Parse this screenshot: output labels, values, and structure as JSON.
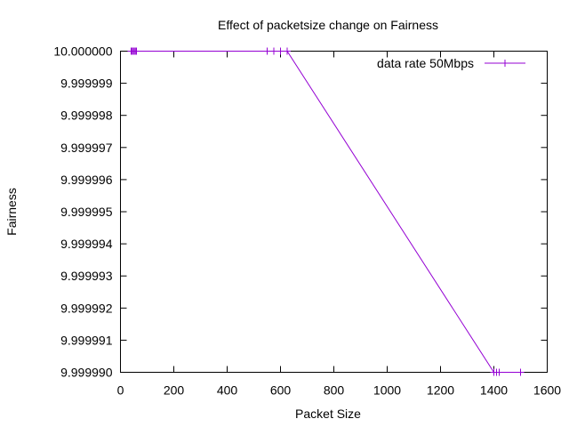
{
  "chart_data": {
    "type": "line",
    "title": "Effect of packetsize change on Fairness",
    "xlabel": "Packet Size",
    "ylabel": "Fairness",
    "xlim": [
      0,
      1600
    ],
    "ylim": [
      9.99999,
      10.0
    ],
    "xticks": [
      0,
      200,
      400,
      600,
      800,
      1000,
      1200,
      1400,
      1600
    ],
    "xtick_labels": [
      "0",
      "200",
      "400",
      "600",
      "800",
      "1000",
      "1200",
      "1400",
      "1600"
    ],
    "yticks": [
      9.99999,
      9.999991,
      9.999992,
      9.999993,
      9.999994,
      9.999995,
      9.999996,
      9.999997,
      9.999998,
      9.999999,
      10.0
    ],
    "ytick_labels": [
      "9.999990",
      "9.999991",
      "9.999992",
      "9.999993",
      "9.999994",
      "9.999995",
      "9.999996",
      "9.999997",
      "9.999998",
      "9.999999",
      "10.000000"
    ],
    "grid": false,
    "legend_position": "top-right",
    "series": [
      {
        "name": "data rate 50Mbps",
        "color": "#9400d3",
        "marker": "plus",
        "x": [
          40,
          44,
          48,
          52,
          56,
          60,
          550,
          575,
          600,
          625,
          1400,
          1410,
          1420,
          1500
        ],
        "y": [
          10.0,
          10.0,
          10.0,
          10.0,
          10.0,
          10.0,
          10.0,
          10.0,
          10.0,
          10.0,
          9.99999,
          9.99999,
          9.99999,
          9.99999
        ]
      }
    ]
  }
}
